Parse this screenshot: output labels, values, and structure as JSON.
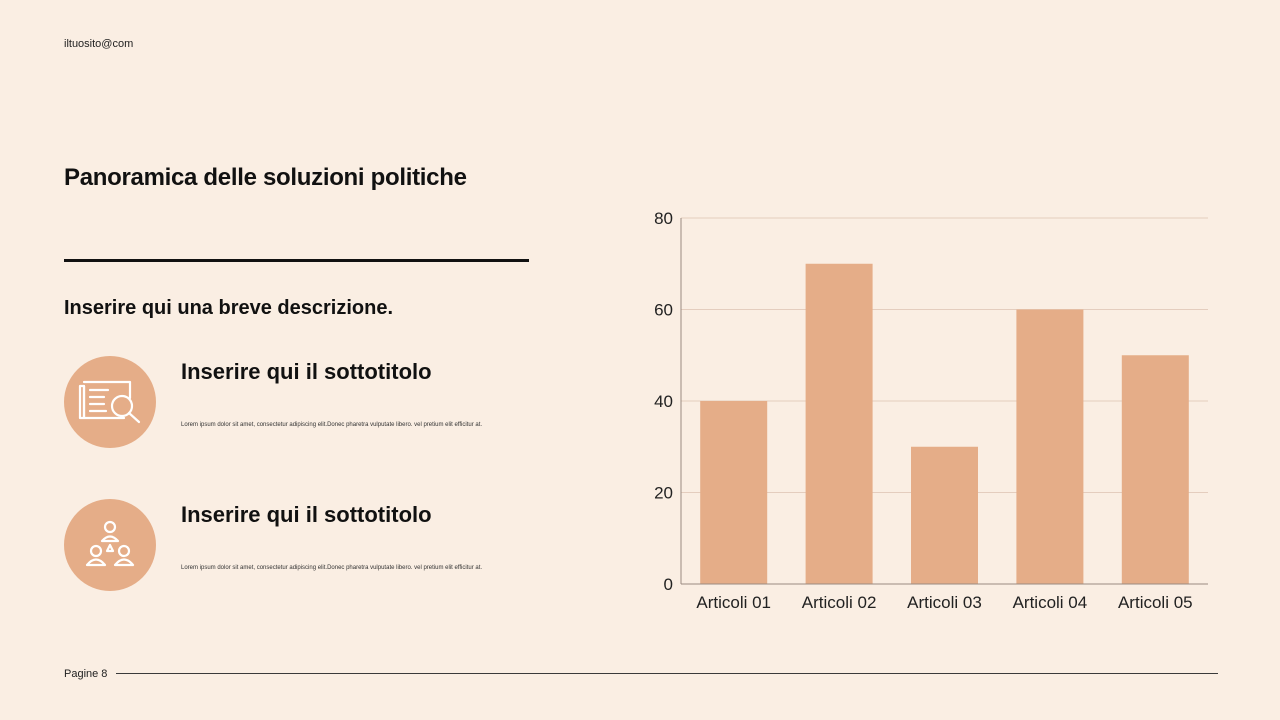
{
  "header": {
    "site": "iltuosito@com"
  },
  "main": {
    "title": "Panoramica delle soluzioni politiche",
    "description": "Inserire qui una breve descrizione.",
    "features": [
      {
        "icon": "document-search-icon",
        "subtitle": "Inserire qui il sottotitolo",
        "text": "Lorem ipsum dolor sit amet, consectetur adipiscing elit.Donec pharetra vulputate libero. vel pretium elit efficitur at."
      },
      {
        "icon": "team-users-icon",
        "subtitle": "Inserire qui il sottotitolo",
        "text": "Lorem ipsum dolor sit amet, consectetur adipiscing elit.Donec pharetra vulputate libero. vel pretium elit efficitur at."
      }
    ]
  },
  "footer": {
    "page_label": "Pagine 8"
  },
  "colors": {
    "background": "#FAEEE3",
    "accent": "#E5AD88",
    "text": "#111111"
  },
  "chart_data": {
    "type": "bar",
    "categories": [
      "Articoli 01",
      "Articoli 02",
      "Articoli 03",
      "Articoli 04",
      "Articoli 05"
    ],
    "values": [
      40,
      70,
      30,
      60,
      50
    ],
    "ylim": [
      0,
      80
    ],
    "yticks": [
      0,
      20,
      40,
      60,
      80
    ],
    "grid": true,
    "bar_color": "#E5AD88"
  }
}
